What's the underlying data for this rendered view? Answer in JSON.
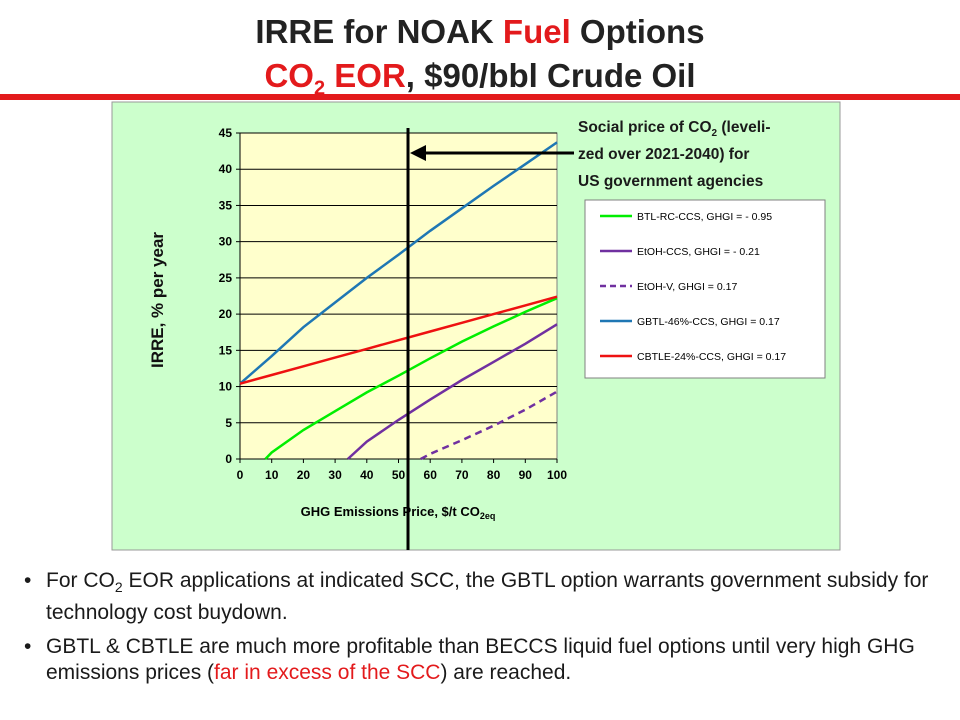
{
  "slide": {
    "title_part1": "IRRE for NOAK ",
    "title_fuel": "Fuel",
    "title_part2": " Options",
    "subtitle_co": "CO",
    "subtitle_sub": "2",
    "subtitle_eor": " EOR",
    "subtitle_rest": ", $90/bbl Crude Oil",
    "colors": {
      "title": "#222222",
      "accent": "#e31a1c",
      "plot_bg": "#ffffcc",
      "chart_bg": "#ccffcc"
    }
  },
  "annotation": {
    "line1_a": "Social price of CO",
    "line1_sub": "2",
    "line1_b": " (leveli-",
    "line2": "zed over 2021-2040) for",
    "line3": "US government agencies"
  },
  "chart_data": {
    "type": "line",
    "xlabel": "GHG Emissions Price, $/t CO",
    "xlabel_sub": "2eq",
    "ylabel": "IRRE, % per year",
    "xlim": [
      0,
      100
    ],
    "ylim": [
      0,
      45
    ],
    "x_ticks": [
      0,
      10,
      20,
      30,
      40,
      50,
      60,
      70,
      80,
      90,
      100
    ],
    "y_ticks": [
      0,
      5,
      10,
      15,
      20,
      25,
      30,
      35,
      40,
      45
    ],
    "grid": "horizontal",
    "legend_position": "right",
    "scc_marker_x": 53,
    "series": [
      {
        "name": "BTL-RC-CCS, GHGI = - 0.95",
        "color": "#00ee00",
        "dash": false,
        "points": [
          [
            8,
            0
          ],
          [
            10,
            0.9
          ],
          [
            20,
            4
          ],
          [
            30,
            6.6
          ],
          [
            40,
            9.2
          ],
          [
            50,
            11.5
          ],
          [
            60,
            13.9
          ],
          [
            70,
            16.2
          ],
          [
            80,
            18.3
          ],
          [
            90,
            20.3
          ],
          [
            100,
            22.2
          ]
        ]
      },
      {
        "name": "EtOH-CCS, GHGI = - 0.21",
        "color": "#7030a0",
        "dash": false,
        "points": [
          [
            34,
            0
          ],
          [
            40,
            2.4
          ],
          [
            50,
            5.4
          ],
          [
            60,
            8.2
          ],
          [
            70,
            10.9
          ],
          [
            80,
            13.4
          ],
          [
            90,
            15.9
          ],
          [
            100,
            18.6
          ]
        ]
      },
      {
        "name": "EtOH-V, GHGI = 0.17",
        "color": "#7030a0",
        "dash": true,
        "points": [
          [
            57,
            0
          ],
          [
            60,
            0.7
          ],
          [
            70,
            2.6
          ],
          [
            80,
            4.6
          ],
          [
            90,
            6.8
          ],
          [
            100,
            9.3
          ]
        ]
      },
      {
        "name": "GBTL-46%-CCS, GHGI = 0.17",
        "color": "#1f77b4",
        "dash": false,
        "points": [
          [
            0,
            10.4
          ],
          [
            10,
            14.2
          ],
          [
            20,
            18.2
          ],
          [
            30,
            21.6
          ],
          [
            40,
            25
          ],
          [
            50,
            28.2
          ],
          [
            60,
            31.5
          ],
          [
            70,
            34.6
          ],
          [
            80,
            37.7
          ],
          [
            90,
            40.7
          ],
          [
            100,
            43.7
          ]
        ]
      },
      {
        "name": "CBTLE-24%-CCS, GHGI = 0.17",
        "color": "#ee1111",
        "dash": false,
        "points": [
          [
            0,
            10.4
          ],
          [
            10,
            11.6
          ],
          [
            20,
            12.8
          ],
          [
            30,
            14
          ],
          [
            40,
            15.2
          ],
          [
            50,
            16.4
          ],
          [
            60,
            17.6
          ],
          [
            70,
            18.8
          ],
          [
            80,
            20
          ],
          [
            90,
            21.2
          ],
          [
            100,
            22.4
          ]
        ]
      }
    ]
  },
  "bullets": {
    "b1_a": "For CO",
    "b1_sub": "2",
    "b1_b": " EOR applications at indicated SCC, the GBTL option warrants government subsidy for technology cost buydown.",
    "b2_a": "GBTL & CBTLE are much more profitable than BECCS liquid fuel options until very high GHG emissions prices (",
    "b2_red": "far in excess of the SCC",
    "b2_b": ") are reached.",
    "marker": "•"
  }
}
